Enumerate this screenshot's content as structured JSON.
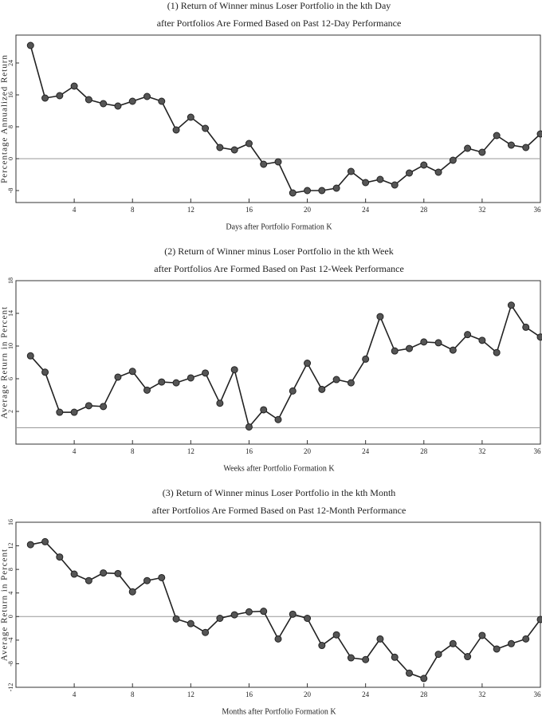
{
  "chart_data": [
    {
      "type": "line",
      "title": "(1) Return of Winner minus Loser Portfolio in the kth Day",
      "subtitle": "after Portfolios Are Formed Based on Past 12-Day Performance",
      "x_label": "Days after Portfolio Formation K",
      "y_label": "Percentage Annualized Return",
      "x": [
        1,
        2,
        3,
        4,
        5,
        6,
        7,
        8,
        9,
        10,
        11,
        12,
        13,
        14,
        15,
        16,
        17,
        18,
        19,
        20,
        21,
        22,
        23,
        24,
        25,
        26,
        27,
        28,
        29,
        30,
        31,
        32,
        33,
        34,
        35,
        36
      ],
      "values": [
        28.4,
        15.2,
        15.8,
        18.2,
        14.8,
        13.8,
        13.2,
        14.4,
        15.6,
        14.4,
        7.2,
        10.4,
        7.6,
        2.8,
        2.2,
        3.8,
        -1.4,
        -0.8,
        -8.6,
        -8,
        -8,
        -7.4,
        -3.2,
        -6,
        -5.2,
        -6.6,
        -3.6,
        -1.6,
        -3.4,
        -0.4,
        2.6,
        1.6,
        5.8,
        3.4,
        2.8,
        6.2
      ],
      "color": "#222222",
      "xlim": [
        0,
        36
      ],
      "xticks": [
        4,
        8,
        12,
        16,
        20,
        24,
        28,
        32,
        36
      ],
      "ylim": [
        -11,
        31
      ],
      "yticks": [
        -8,
        0,
        8,
        16,
        24
      ]
    },
    {
      "type": "line",
      "title": "(2) Return of Winner minus Loser Portfolio in the kth Week",
      "subtitle": "after Portfolios Are Formed Based on Past 12-Week Performance",
      "x_label": "Weeks after Portfolio Formation K",
      "y_label": "Average Return in Percent",
      "x": [
        1,
        2,
        3,
        4,
        5,
        6,
        7,
        8,
        9,
        10,
        11,
        12,
        13,
        14,
        15,
        16,
        17,
        18,
        19,
        20,
        21,
        22,
        23,
        24,
        25,
        26,
        27,
        28,
        29,
        30,
        31,
        32,
        33,
        34,
        35,
        36
      ],
      "values": [
        8.8,
        6.8,
        1.9,
        1.9,
        2.7,
        2.6,
        6.2,
        6.9,
        4.6,
        5.6,
        5.5,
        6.1,
        6.7,
        3.0,
        7.1,
        0.1,
        2.2,
        1.0,
        4.5,
        7.9,
        4.7,
        5.9,
        5.5,
        8.4,
        13.6,
        9.4,
        9.7,
        10.5,
        10.4,
        9.5,
        11.4,
        10.7,
        9.2,
        15.0,
        12.3,
        11.1
      ],
      "color": "#222222",
      "xlim": [
        0,
        36
      ],
      "xticks": [
        4,
        8,
        12,
        16,
        20,
        24,
        28,
        32,
        36
      ],
      "ylim": [
        -2,
        18
      ],
      "yticks": [
        2,
        6,
        10,
        14,
        18
      ]
    },
    {
      "type": "line",
      "title": "(3) Return of Winner minus Loser Portfolio in the kth Month",
      "subtitle": "after Portfolios Are Formed Based on Past 12-Month Performance",
      "x_label": "Months after Portfolio Formation K",
      "y_label": "Average Return in Percent",
      "x": [
        1,
        2,
        3,
        4,
        5,
        6,
        7,
        8,
        9,
        10,
        11,
        12,
        13,
        14,
        15,
        16,
        17,
        18,
        19,
        20,
        21,
        22,
        23,
        24,
        25,
        26,
        27,
        28,
        29,
        30,
        31,
        32,
        33,
        34,
        35,
        36
      ],
      "values": [
        12.2,
        12.7,
        10.1,
        7.2,
        6.1,
        7.4,
        7.3,
        4.2,
        6.1,
        6.6,
        -0.4,
        -1.2,
        -2.7,
        -0.3,
        0.3,
        0.8,
        0.9,
        -3.8,
        0.4,
        -0.3,
        -4.9,
        -3.1,
        -7.0,
        -7.3,
        -3.8,
        -6.9,
        -9.6,
        -10.5,
        -6.4,
        -4.6,
        -6.8,
        -3.2,
        -5.5,
        -4.6,
        -3.8,
        -0.5
      ],
      "color": "#222222",
      "xlim": [
        0,
        36
      ],
      "xticks": [
        4,
        8,
        12,
        16,
        20,
        24,
        28,
        32,
        36
      ],
      "ylim": [
        -12,
        16
      ],
      "yticks": [
        -12,
        -8,
        -4,
        0,
        4,
        8,
        12,
        16
      ]
    }
  ]
}
